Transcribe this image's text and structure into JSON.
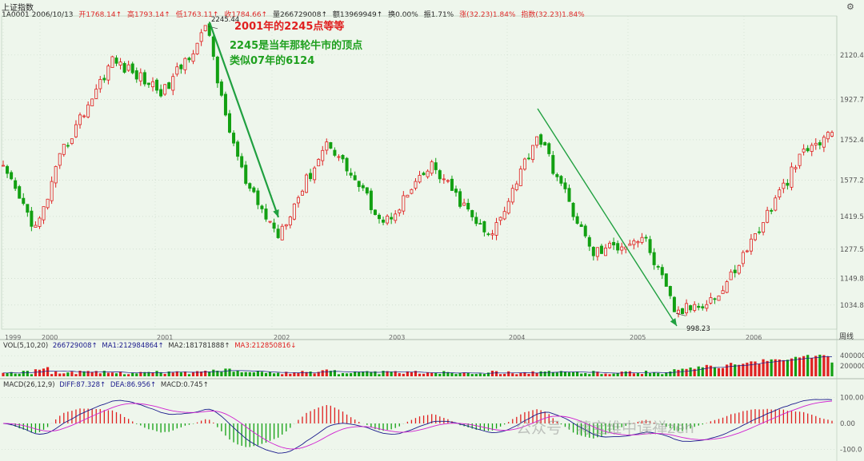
{
  "header": {
    "title": "上证指数",
    "stock_line": {
      "code_date": "1A0001 2006/10/13",
      "open": "开1768.14↑",
      "high": "高1793.14↑",
      "low": "低1763.11↑",
      "close": "收1784.66↑",
      "volume": "量266729008↑",
      "amount": "额13969949↑",
      "turnover": "换0.00%",
      "amplitude": "振1.71%",
      "change": "涨(32.23)1.84%",
      "index_change": "指数(32.23)1.84%"
    }
  },
  "annotations": {
    "red_title": "2001年的2245点等等",
    "green_line1": "2245是当年那轮牛市的顶点",
    "green_line2": "类似07年的6124",
    "peak_label": "2245.44",
    "bottom_label": "998.23"
  },
  "watermark": "公众号 · 蒋宝维中误禅zen",
  "period_label": "周线",
  "volume_panel": {
    "title": "VOL(5,10,20)",
    "vol": "266729008↑",
    "ma1": "MA1:212984864↑",
    "ma2": "MA2:181781888↑",
    "ma3": "MA3:212850816↓"
  },
  "macd_panel": {
    "title": "MACD(26,12,9)",
    "dif": "DIFF:87.328↑",
    "dea": "DEA:86.956↑",
    "macd": "MACD:0.745↑"
  },
  "colors": {
    "background": "#eef6ec",
    "up": "#e02020",
    "down": "#12a012",
    "annotation_red": "#e02020",
    "annotation_green": "#1fa01f",
    "arrow": "#20a040",
    "dif_line": "#1a1a8c",
    "dea_line": "#d020d0"
  },
  "chart_data": [
    {
      "type": "candlestick",
      "title": "上证指数",
      "x_axis_labels": [
        "1999",
        "2000",
        "2001",
        "2002",
        "2003",
        "2004",
        "2005",
        "2006"
      ],
      "y_tick_labels": [
        "2120.4",
        "1927.7",
        "1752.4",
        "1577.2",
        "1419.5",
        "1277.5",
        "1149.8",
        "1034.8"
      ],
      "ylim": [
        930,
        2290
      ],
      "grid": true,
      "key_points": [
        {
          "date": "1999",
          "value": 1620
        },
        {
          "date": "1999",
          "value": 1360
        },
        {
          "date": "2000",
          "value": 1700
        },
        {
          "date": "2000",
          "value": 2100
        },
        {
          "date": "2000-12",
          "value": 1960
        },
        {
          "date": "2001-06",
          "value": 2245.44,
          "label": "2245.44"
        },
        {
          "date": "2001-07",
          "value": 1900
        },
        {
          "date": "2001-10",
          "value": 1550
        },
        {
          "date": "2002-01",
          "value": 1340
        },
        {
          "date": "2002-06",
          "value": 1750
        },
        {
          "date": "2002-12",
          "value": 1390
        },
        {
          "date": "2003-04",
          "value": 1640
        },
        {
          "date": "2003-11",
          "value": 1320
        },
        {
          "date": "2004-04",
          "value": 1780
        },
        {
          "date": "2004-09",
          "value": 1260
        },
        {
          "date": "2005-02",
          "value": 1330
        },
        {
          "date": "2005-06",
          "value": 998.23,
          "label": "998.23"
        },
        {
          "date": "2005-12",
          "value": 1080
        },
        {
          "date": "2006-06",
          "value": 1700
        },
        {
          "date": "2006-10",
          "value": 1784.66
        }
      ],
      "last_bar": {
        "open": 1768.14,
        "high": 1793.14,
        "low": 1763.11,
        "close": 1784.66
      }
    },
    {
      "type": "bar",
      "title": "VOL(5,10,20)",
      "y_tick_labels": [
        "400000",
        "200000"
      ],
      "last_value": 266729008,
      "ma_values": {
        "MA1": 212984864,
        "MA2": 181781888,
        "MA3": 212850816
      }
    },
    {
      "type": "line",
      "title": "MACD(26,12,9)",
      "y_tick_labels": [
        "100.00",
        "0.00",
        "-100.0"
      ],
      "ylim": [
        -130,
        130
      ],
      "series": [
        {
          "name": "DIFF",
          "last_value": 87.328
        },
        {
          "name": "DEA",
          "last_value": 86.956
        },
        {
          "name": "MACD",
          "last_value": 0.745
        }
      ]
    }
  ]
}
